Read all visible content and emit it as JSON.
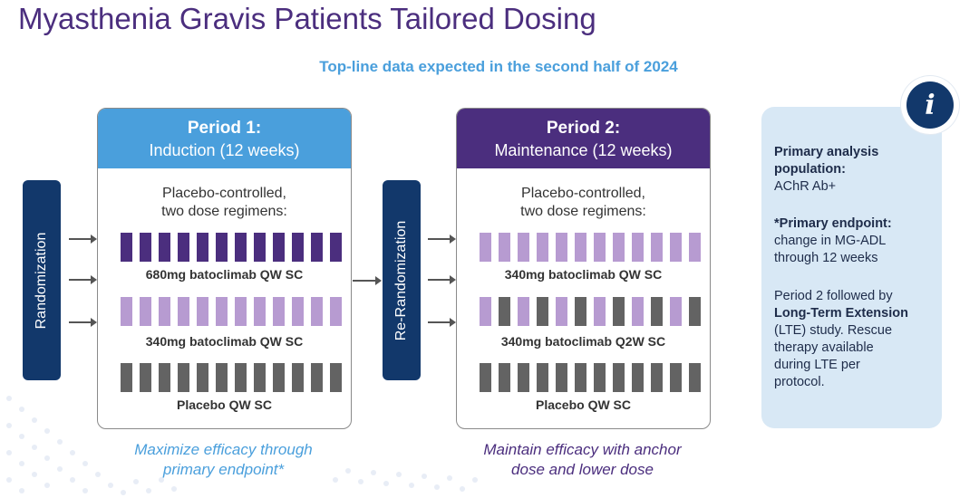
{
  "title": "Myasthenia Gravis Patients Tailored Dosing",
  "subtitle": "Top-line data expected in the second half of 2024",
  "randomization_label": "Randomization",
  "rerandomization_label": "Re-Randomization",
  "colors": {
    "title": "#4b2e7e",
    "subtitle": "#4a9fdc",
    "period1_header": "#4a9fdc",
    "period2_header": "#4b2e7e",
    "dark_purple": "#4b2e7e",
    "light_purple": "#b79bd1",
    "gray": "#636363",
    "navy": "#12386b"
  },
  "period1": {
    "heading": "Period 1:",
    "subheading": "Induction (12 weeks)",
    "description_line1": "Placebo-controlled,",
    "description_line2": "two dose regimens:",
    "arms": [
      {
        "label": "680mg batoclimab QW SC",
        "pattern": [
          "P",
          "P",
          "P",
          "P",
          "P",
          "P",
          "P",
          "P",
          "P",
          "P",
          "P",
          "P"
        ]
      },
      {
        "label": "340mg batoclimab QW SC",
        "pattern": [
          "L",
          "L",
          "L",
          "L",
          "L",
          "L",
          "L",
          "L",
          "L",
          "L",
          "L",
          "L"
        ]
      },
      {
        "label": "Placebo QW SC",
        "pattern": [
          "G",
          "G",
          "G",
          "G",
          "G",
          "G",
          "G",
          "G",
          "G",
          "G",
          "G",
          "G"
        ]
      }
    ],
    "goal_line1": "Maximize efficacy through",
    "goal_line2": "primary endpoint*"
  },
  "period2": {
    "heading": "Period 2:",
    "subheading": "Maintenance (12 weeks)",
    "description_line1": "Placebo-controlled,",
    "description_line2": "two dose regimens:",
    "arms": [
      {
        "label": "340mg batoclimab QW SC",
        "pattern": [
          "L",
          "L",
          "L",
          "L",
          "L",
          "L",
          "L",
          "L",
          "L",
          "L",
          "L",
          "L"
        ]
      },
      {
        "label": "340mg batoclimab Q2W SC",
        "pattern": [
          "L",
          "G",
          "L",
          "G",
          "L",
          "G",
          "L",
          "G",
          "L",
          "G",
          "L",
          "G"
        ]
      },
      {
        "label": "Placebo QW SC",
        "pattern": [
          "G",
          "G",
          "G",
          "G",
          "G",
          "G",
          "G",
          "G",
          "G",
          "G",
          "G",
          "G"
        ]
      }
    ],
    "goal_line1": "Maintain efficacy with anchor",
    "goal_line2": "dose and lower dose"
  },
  "info": {
    "icon": "info-icon",
    "icon_glyph": "i",
    "primary_population_heading_line1": "Primary analysis",
    "primary_population_heading_line2": "population:",
    "primary_population_value": "AChR Ab+",
    "primary_endpoint_heading": "*Primary endpoint:",
    "primary_endpoint_line1": "change in MG-ADL",
    "primary_endpoint_line2": "through 12 weeks",
    "lte_line1": "Period 2 followed by",
    "lte_bold": "Long-Term Extension",
    "lte_line3": "(LTE) study. Rescue",
    "lte_line4": "therapy available",
    "lte_line5": "during LTE per",
    "lte_line6": "protocol."
  }
}
